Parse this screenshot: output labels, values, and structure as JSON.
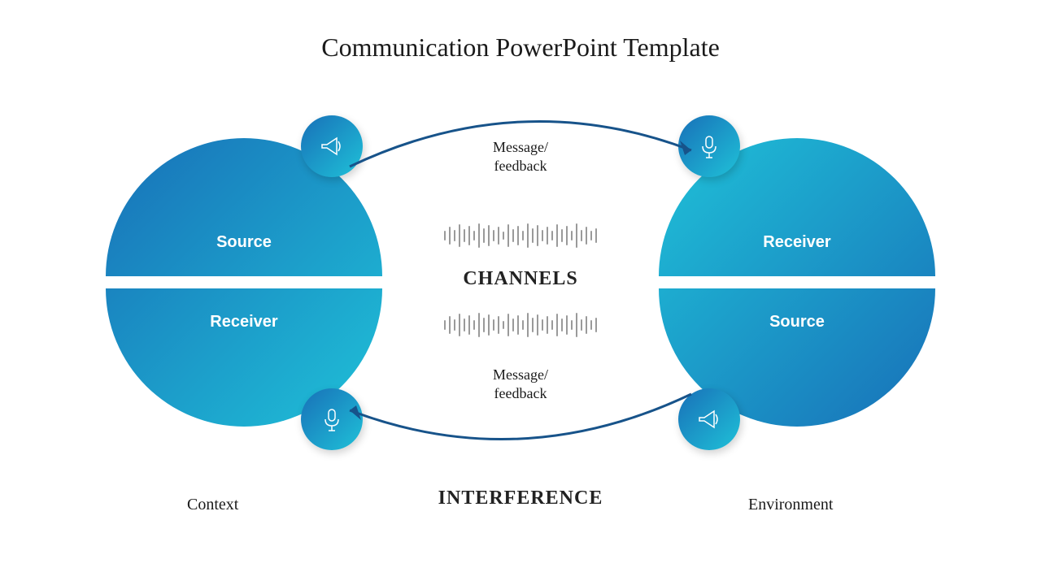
{
  "title": "Communication PowerPoint Template",
  "left_entity": {
    "top_label": "Source",
    "top_icon": "megaphone-icon",
    "bottom_label": "Receiver",
    "bottom_icon": "microphone-icon",
    "footer_label": "Context",
    "gradient_start": "#1870b8",
    "gradient_end": "#1fc1d8"
  },
  "right_entity": {
    "top_label": "Receiver",
    "top_icon": "microphone-icon",
    "bottom_label": "Source",
    "bottom_icon": "megaphone-icon",
    "footer_label": "Environment",
    "gradient_start": "#1fc1d8",
    "gradient_end": "#1870b8"
  },
  "center": {
    "top_arrow_label": "Message/\nfeedback",
    "bottom_arrow_label": "Message/\nfeedback",
    "main_label": "CHANNELS",
    "bottom_label": "INTERFERENCE",
    "arrow_color": "#17538a",
    "waveform_color": "#9a9a9a",
    "waveform_bar_heights": [
      12,
      22,
      14,
      28,
      16,
      24,
      12,
      30,
      18,
      26,
      14,
      22,
      10,
      28,
      16,
      24,
      12,
      30,
      18,
      26,
      14,
      22,
      12,
      28,
      16,
      24,
      12,
      30,
      14,
      22,
      12,
      18
    ]
  },
  "styling": {
    "title_fontsize": 32,
    "title_color": "#1a1a1a",
    "half_label_fontsize": 20,
    "half_label_color": "#ffffff",
    "center_label_fontsize": 24,
    "arrow_label_fontsize": 18,
    "footer_label_fontsize": 20,
    "circle_width": 340,
    "circle_height": 340,
    "icon_badge_size": 76,
    "background": "#ffffff"
  }
}
